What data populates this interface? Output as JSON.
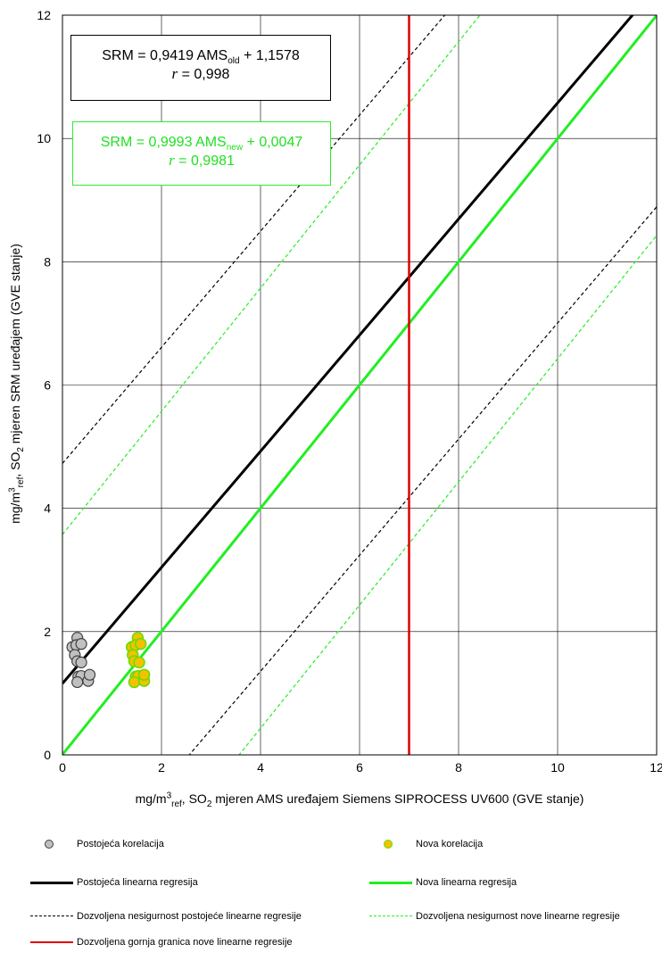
{
  "colors": {
    "old_points_fill": "#c0c0c0",
    "old_points_edge": "#404040",
    "new_points_fill": "#f2c200",
    "new_points_edge": "#66dd00",
    "old_line": "#000000",
    "new_line": "#22ee22",
    "limit_line": "#e00000",
    "grid": "#000000"
  },
  "chart_data": {
    "type": "scatter",
    "xlabel": {
      "pre": "mg/m",
      "sup": "3",
      "sub": "ref",
      "mid": ",  SO",
      "sub2": "2",
      "post": " mjeren AMS uređajem Siemens SIPROCESS UV600 (GVE stanje)"
    },
    "ylabel": {
      "pre": "mg/m",
      "sup": "3",
      "sub": "ref",
      "mid": ",  SO",
      "sub2": "2",
      "post": " mjeren SRM uređajem (GVE stanje)"
    },
    "xlim": [
      0,
      12
    ],
    "ylim": [
      0,
      12
    ],
    "x_ticks": [
      "0",
      "2",
      "4",
      "6",
      "8",
      "10",
      "12"
    ],
    "y_ticks": [
      "0",
      "2",
      "4",
      "6",
      "8",
      "10",
      "12"
    ],
    "grid": true,
    "equations": {
      "old": {
        "pre": "SRM = 0,9419 AMS",
        "sub": "old",
        "post": " + 1,1578",
        "r_symbol": "r",
        "r_value": " = 0,998"
      },
      "new": {
        "pre": "SRM = 0,9993 AMS",
        "sub": "new",
        "post": " + 0,0047",
        "r_symbol": "r",
        "r_value": " = 0,9981"
      }
    },
    "series": [
      {
        "name": "Postojeća korelacija",
        "kind": "points",
        "points": [
          [
            0.3,
            1.9
          ],
          [
            0.2,
            1.75
          ],
          [
            0.28,
            1.78
          ],
          [
            0.38,
            1.8
          ],
          [
            0.25,
            1.62
          ],
          [
            0.3,
            1.52
          ],
          [
            0.38,
            1.5
          ],
          [
            0.32,
            1.27
          ],
          [
            0.38,
            1.28
          ],
          [
            0.3,
            1.18
          ],
          [
            0.52,
            1.2
          ],
          [
            0.55,
            1.3
          ]
        ]
      },
      {
        "name": "Nova korelacija",
        "kind": "points",
        "points": [
          [
            1.52,
            1.9
          ],
          [
            1.4,
            1.75
          ],
          [
            1.48,
            1.78
          ],
          [
            1.58,
            1.8
          ],
          [
            1.42,
            1.62
          ],
          [
            1.45,
            1.52
          ],
          [
            1.55,
            1.5
          ],
          [
            1.48,
            1.27
          ],
          [
            1.53,
            1.28
          ],
          [
            1.45,
            1.18
          ],
          [
            1.65,
            1.2
          ],
          [
            1.65,
            1.3
          ]
        ]
      },
      {
        "name": "Postojeća linearna regresija",
        "kind": "line",
        "slope": 0.9419,
        "intercept": 1.1578
      },
      {
        "name": "Nova linearna regresija",
        "kind": "line",
        "slope": 0.9993,
        "intercept": 0.0047
      },
      {
        "name": "Dozvoljena nesigurnost postojeće linearne regresije",
        "kind": "band",
        "slope": 0.9419,
        "intercept": 1.1578,
        "offset": 3.57
      },
      {
        "name": "Dozvoljena nesigurnost nove linearne regresije",
        "kind": "band",
        "slope": 0.9993,
        "intercept": 0.0047,
        "offset": 3.57
      },
      {
        "name": "Dozvoljena gornja granica nove linearne regresije",
        "kind": "vline",
        "x": 7
      }
    ]
  }
}
